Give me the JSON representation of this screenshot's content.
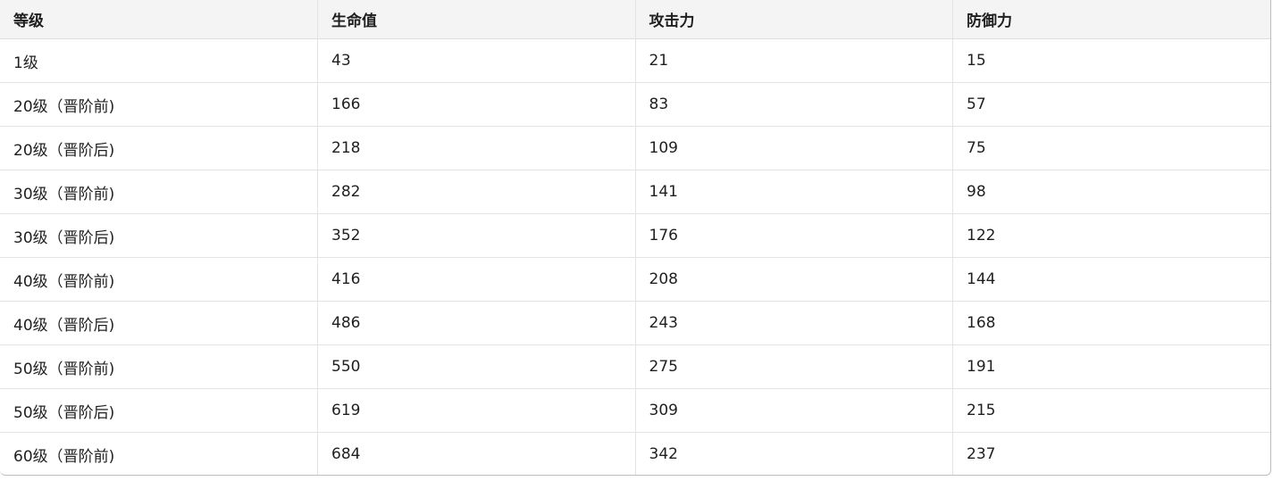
{
  "table": {
    "headers": [
      "等级",
      "生命值",
      "攻击力",
      "防御力"
    ],
    "rows": [
      [
        "1级",
        "43",
        "21",
        "15"
      ],
      [
        "20级（晋阶前)",
        "166",
        "83",
        "57"
      ],
      [
        "20级（晋阶后)",
        "218",
        "109",
        "75"
      ],
      [
        "30级（晋阶前)",
        "282",
        "141",
        "98"
      ],
      [
        "30级（晋阶后)",
        "352",
        "176",
        "122"
      ],
      [
        "40级（晋阶前)",
        "416",
        "208",
        "144"
      ],
      [
        "40级（晋阶后)",
        "486",
        "243",
        "168"
      ],
      [
        "50级（晋阶前)",
        "550",
        "275",
        "191"
      ],
      [
        "50级（晋阶后)",
        "619",
        "309",
        "215"
      ],
      [
        "60级（晋阶前)",
        "684",
        "342",
        "237"
      ]
    ]
  }
}
